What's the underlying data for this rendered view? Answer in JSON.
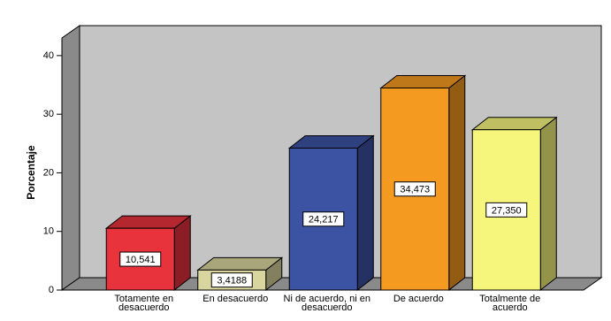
{
  "chart_data": {
    "type": "bar3d",
    "y_label": "Porcentaje",
    "categories": [
      "Totamente en desacuerdo",
      "En desacuerdo",
      "Ni de acuerdo, ni en desacuerdo",
      "De acuerdo",
      "Totalmente de acuerdo"
    ],
    "values": [
      10.541,
      3.4188,
      24.217,
      34.473,
      27.35
    ],
    "value_labels": [
      "10,541",
      "3,4188",
      "24,217",
      "34,473",
      "27,350"
    ],
    "colors": [
      "#e8323c",
      "#d9d59e",
      "#3c52a3",
      "#f59a20",
      "#f6f57c"
    ],
    "ylim": [
      0,
      43
    ],
    "yticks": [
      0,
      10,
      20,
      30,
      40
    ],
    "grid": false
  }
}
